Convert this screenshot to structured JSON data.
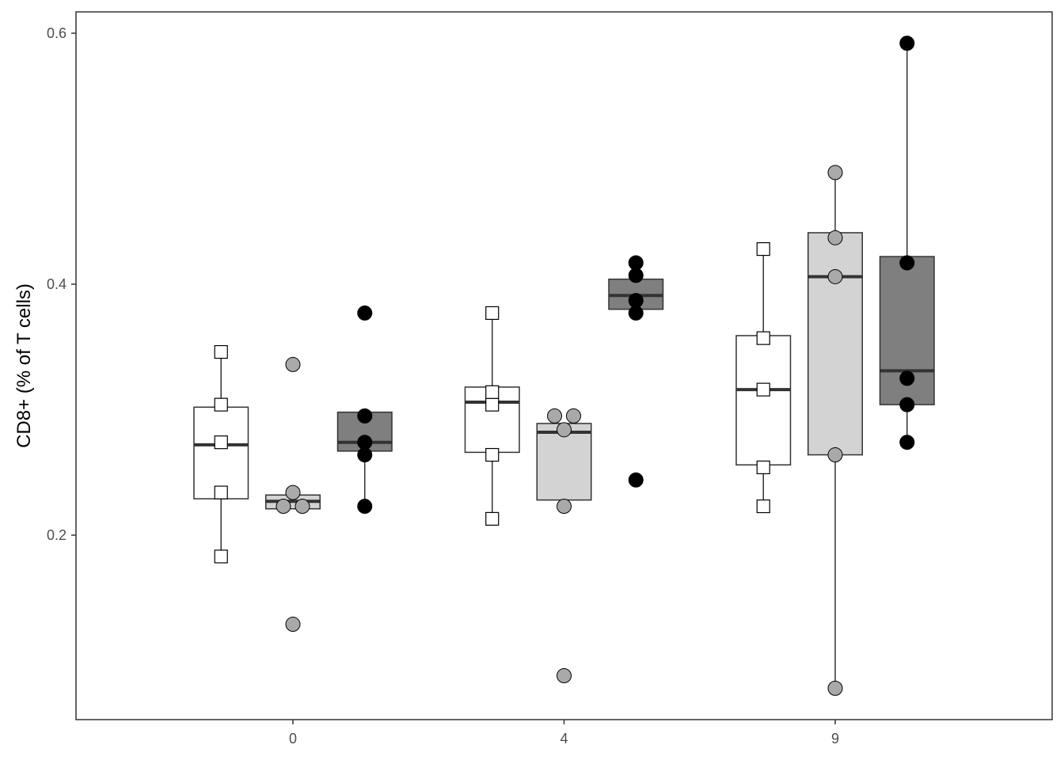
{
  "chart_data": {
    "type": "boxplot",
    "title": "",
    "xlabel": "",
    "ylabel": "CD8+ (% of T cells)",
    "categories": [
      "0",
      "4",
      "9"
    ],
    "ylim": [
      0.053,
      0.617
    ],
    "yticks": [
      0.2,
      0.4,
      0.6
    ],
    "ytick_labels": [
      "0.2",
      "0.4",
      "0.6"
    ],
    "grid": false,
    "legend": "none",
    "series": [
      {
        "fill": "#ffffff",
        "point_shape": "square",
        "point_fill": "#ffffff",
        "boxes": [
          {
            "category": "0",
            "whisker_low": 0.183,
            "q1": 0.229,
            "median": 0.272,
            "q3": 0.302,
            "whisker_high": 0.346,
            "points": [
              0.183,
              0.234,
              0.274,
              0.304,
              0.346
            ]
          },
          {
            "category": "4",
            "whisker_low": 0.213,
            "q1": 0.266,
            "median": 0.306,
            "q3": 0.318,
            "whisker_high": 0.377,
            "points": [
              0.213,
              0.264,
              0.304,
              0.314,
              0.377
            ]
          },
          {
            "category": "9",
            "whisker_low": 0.223,
            "q1": 0.256,
            "median": 0.316,
            "q3": 0.359,
            "whisker_high": 0.428,
            "points": [
              0.223,
              0.254,
              0.316,
              0.357,
              0.428
            ]
          }
        ]
      },
      {
        "fill": "#d3d3d3",
        "point_shape": "circle",
        "point_fill": "#a9a9a9",
        "boxes": [
          {
            "category": "0",
            "whisker_low": 0.221,
            "q1": 0.221,
            "median": 0.227,
            "q3": 0.232,
            "whisker_high": 0.232,
            "points": [
              0.129,
              0.223,
              0.223,
              0.234,
              0.336
            ]
          },
          {
            "category": "4",
            "whisker_low": 0.228,
            "q1": 0.228,
            "median": 0.282,
            "q3": 0.289,
            "whisker_high": 0.289,
            "points": [
              0.088,
              0.223,
              0.284,
              0.295,
              0.295
            ]
          },
          {
            "category": "9",
            "whisker_low": 0.078,
            "q1": 0.264,
            "median": 0.406,
            "q3": 0.441,
            "whisker_high": 0.489,
            "points": [
              0.078,
              0.264,
              0.406,
              0.437,
              0.489
            ]
          }
        ]
      },
      {
        "fill": "#7f7f7f",
        "point_shape": "circle",
        "point_fill": "#000000",
        "boxes": [
          {
            "category": "0",
            "whisker_low": 0.223,
            "q1": 0.267,
            "median": 0.274,
            "q3": 0.298,
            "whisker_high": 0.298,
            "points": [
              0.223,
              0.264,
              0.274,
              0.295,
              0.377
            ]
          },
          {
            "category": "4",
            "whisker_low": 0.38,
            "q1": 0.38,
            "median": 0.391,
            "q3": 0.404,
            "whisker_high": 0.404,
            "points": [
              0.244,
              0.377,
              0.387,
              0.407,
              0.417
            ]
          },
          {
            "category": "9",
            "whisker_low": 0.274,
            "q1": 0.304,
            "median": 0.331,
            "q3": 0.422,
            "whisker_high": 0.592,
            "points": [
              0.274,
              0.304,
              0.325,
              0.417,
              0.592
            ]
          }
        ]
      }
    ]
  }
}
